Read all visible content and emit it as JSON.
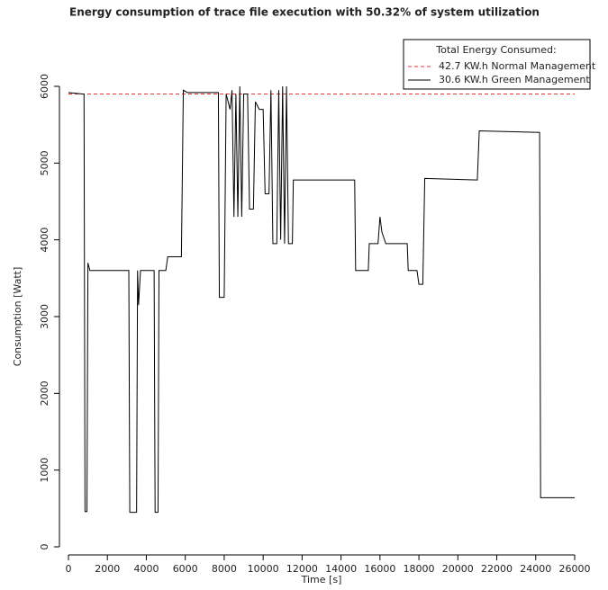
{
  "chart_data": {
    "type": "line",
    "title": "Energy consumption of trace file execution with 50.32% of system utilization",
    "x_label": "Time [s]",
    "y_label": "Consumption [Watt]",
    "legend_title": "Total Energy Consumed:",
    "legend_position": "top-right",
    "xlim": [
      0,
      26000
    ],
    "ylim": [
      0,
      6000
    ],
    "xticks": [
      0,
      2000,
      4000,
      6000,
      8000,
      10000,
      12000,
      14000,
      16000,
      18000,
      20000,
      22000,
      24000,
      26000
    ],
    "yticks": [
      0,
      1000,
      2000,
      3000,
      4000,
      5000,
      6000
    ],
    "series": [
      {
        "name": "42.7 KW.h Normal Management",
        "color": "#e8322f",
        "dashed": true,
        "x": [
          0,
          26000
        ],
        "values": [
          5900,
          5900
        ]
      },
      {
        "name": "30.6 KW.h Green Management",
        "color": "#000000",
        "dashed": false,
        "x": [
          0,
          700,
          800,
          850,
          950,
          1000,
          1100,
          3100,
          3150,
          3500,
          3550,
          3600,
          3700,
          4400,
          4450,
          4600,
          4650,
          5000,
          5100,
          5800,
          5900,
          6100,
          7700,
          7750,
          8000,
          8100,
          8300,
          8400,
          8500,
          8600,
          8700,
          8800,
          8900,
          9000,
          9200,
          9300,
          9500,
          9600,
          9800,
          10000,
          10100,
          10300,
          10400,
          10500,
          10700,
          10800,
          10900,
          11000,
          11100,
          11200,
          11300,
          11500,
          11550,
          14700,
          14750,
          15400,
          15450,
          15900,
          16000,
          16100,
          16300,
          17400,
          17450,
          17900,
          18000,
          18200,
          18300,
          21000,
          21100,
          24200,
          24250,
          26000
        ],
        "values": [
          5920,
          5900,
          5900,
          460,
          460,
          3700,
          3600,
          3600,
          450,
          450,
          3600,
          3150,
          3600,
          3600,
          450,
          450,
          3600,
          3600,
          3780,
          3780,
          5950,
          5920,
          5920,
          3250,
          3250,
          5900,
          5700,
          5950,
          4300,
          5900,
          4300,
          6000,
          4300,
          5900,
          5900,
          4400,
          4400,
          5800,
          5700,
          5700,
          4600,
          4600,
          5950,
          3950,
          3950,
          5950,
          4000,
          6000,
          3950,
          6000,
          3950,
          3950,
          4780,
          4780,
          3600,
          3600,
          3950,
          3950,
          4300,
          4100,
          3950,
          3950,
          3600,
          3600,
          3420,
          3420,
          4800,
          4780,
          5420,
          5400,
          640,
          640
        ]
      }
    ]
  }
}
